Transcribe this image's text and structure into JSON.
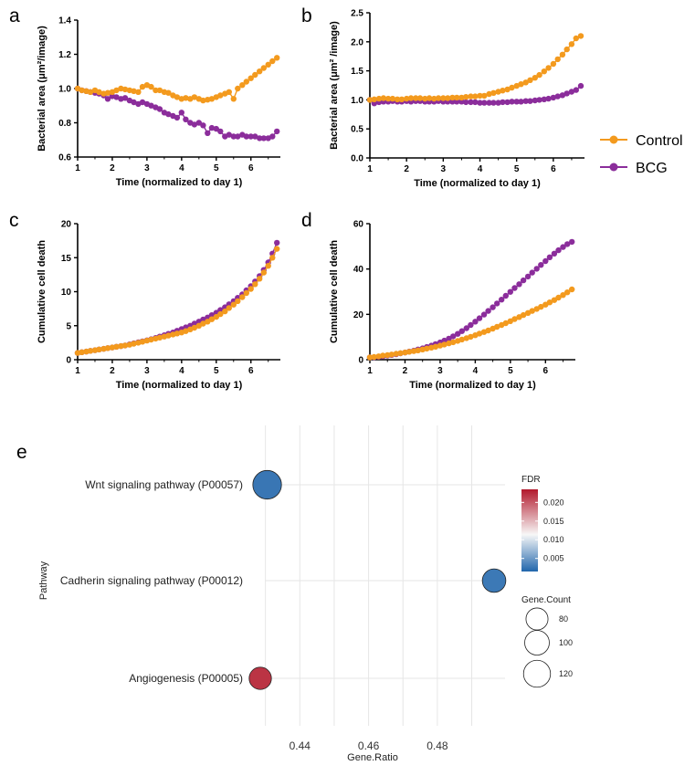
{
  "colors": {
    "control": "#F39A1E",
    "bcg": "#8B2D9B",
    "fdr_low": "#2166AC",
    "fdr_mid": "#F7F7F7",
    "fdr_high": "#B2182B"
  },
  "legend": {
    "items": [
      {
        "label": "Control",
        "color": "#F39A1E"
      },
      {
        "label": "BCG",
        "color": "#8B2D9B"
      }
    ],
    "placement": "right"
  },
  "chart_data": [
    {
      "panel": "a",
      "type": "line",
      "xlabel": "Time (normalized to day 1)",
      "ylabel": "Bacterial area (μm²/image)",
      "xlim": [
        1,
        6.85
      ],
      "ylim": [
        0.6,
        1.4
      ],
      "xticks": [
        "1",
        "2",
        "3",
        "4",
        "5",
        "6"
      ],
      "yticks": [
        "0.6",
        "0.8",
        "1.0",
        "1.2",
        "1.4"
      ],
      "series": [
        {
          "name": "Control",
          "x": [
            1.0,
            1.12,
            1.25,
            1.37,
            1.5,
            1.62,
            1.75,
            1.87,
            2.0,
            2.12,
            2.25,
            2.37,
            2.5,
            2.62,
            2.75,
            2.87,
            3.0,
            3.12,
            3.25,
            3.37,
            3.5,
            3.62,
            3.75,
            3.87,
            4.0,
            4.12,
            4.25,
            4.37,
            4.5,
            4.62,
            4.75,
            4.87,
            5.0,
            5.12,
            5.25,
            5.37,
            5.5,
            5.62,
            5.75,
            5.87,
            6.0,
            6.12,
            6.25,
            6.37,
            6.5,
            6.62,
            6.75
          ],
          "y": [
            1.0,
            0.99,
            0.985,
            0.98,
            0.99,
            0.98,
            0.97,
            0.975,
            0.98,
            0.99,
            1.0,
            0.995,
            0.99,
            0.985,
            0.98,
            1.01,
            1.02,
            1.01,
            0.99,
            0.99,
            0.98,
            0.975,
            0.96,
            0.95,
            0.94,
            0.945,
            0.94,
            0.95,
            0.94,
            0.93,
            0.935,
            0.94,
            0.95,
            0.96,
            0.97,
            0.98,
            0.94,
            1.0,
            1.02,
            1.04,
            1.06,
            1.08,
            1.1,
            1.12,
            1.14,
            1.16,
            1.18
          ]
        },
        {
          "name": "BCG",
          "x": [
            1.0,
            1.12,
            1.25,
            1.37,
            1.5,
            1.62,
            1.75,
            1.87,
            2.0,
            2.12,
            2.25,
            2.37,
            2.5,
            2.62,
            2.75,
            2.87,
            3.0,
            3.12,
            3.25,
            3.37,
            3.5,
            3.62,
            3.75,
            3.87,
            4.0,
            4.12,
            4.25,
            4.37,
            4.5,
            4.62,
            4.75,
            4.87,
            5.0,
            5.12,
            5.25,
            5.37,
            5.5,
            5.62,
            5.75,
            5.87,
            6.0,
            6.12,
            6.25,
            6.37,
            6.5,
            6.62,
            6.75
          ],
          "y": [
            1.0,
            0.99,
            0.985,
            0.98,
            0.975,
            0.97,
            0.96,
            0.94,
            0.955,
            0.95,
            0.94,
            0.945,
            0.93,
            0.92,
            0.91,
            0.92,
            0.91,
            0.9,
            0.89,
            0.88,
            0.86,
            0.85,
            0.84,
            0.83,
            0.86,
            0.82,
            0.8,
            0.79,
            0.8,
            0.785,
            0.74,
            0.77,
            0.765,
            0.75,
            0.72,
            0.73,
            0.72,
            0.72,
            0.73,
            0.72,
            0.72,
            0.72,
            0.71,
            0.71,
            0.71,
            0.72,
            0.75
          ]
        }
      ]
    },
    {
      "panel": "b",
      "type": "line",
      "xlabel": "Time (normalized to day 1)",
      "ylabel": "Bacterial area (μm² /image)",
      "xlim": [
        1,
        6.85
      ],
      "ylim": [
        0,
        2.5
      ],
      "xticks": [
        "1",
        "2",
        "3",
        "4",
        "5",
        "6"
      ],
      "yticks": [
        "0.0",
        "0.5",
        "1.0",
        "1.5",
        "2.0",
        "2.5"
      ],
      "series": [
        {
          "name": "Control",
          "x": [
            1.0,
            1.12,
            1.25,
            1.37,
            1.5,
            1.62,
            1.75,
            1.87,
            2.0,
            2.12,
            2.25,
            2.37,
            2.5,
            2.62,
            2.75,
            2.87,
            3.0,
            3.12,
            3.25,
            3.37,
            3.5,
            3.62,
            3.75,
            3.87,
            4.0,
            4.12,
            4.25,
            4.37,
            4.5,
            4.62,
            4.75,
            4.87,
            5.0,
            5.12,
            5.25,
            5.37,
            5.5,
            5.62,
            5.75,
            5.87,
            6.0,
            6.12,
            6.25,
            6.37,
            6.5,
            6.62,
            6.75
          ],
          "y": [
            1.0,
            1.01,
            1.02,
            1.03,
            1.02,
            1.02,
            1.01,
            1.01,
            1.02,
            1.03,
            1.03,
            1.03,
            1.02,
            1.03,
            1.02,
            1.03,
            1.03,
            1.03,
            1.04,
            1.04,
            1.04,
            1.05,
            1.06,
            1.06,
            1.07,
            1.07,
            1.1,
            1.12,
            1.14,
            1.16,
            1.18,
            1.21,
            1.24,
            1.27,
            1.3,
            1.34,
            1.38,
            1.43,
            1.49,
            1.55,
            1.62,
            1.7,
            1.78,
            1.87,
            1.96,
            2.06,
            2.1
          ]
        },
        {
          "name": "BCG",
          "x": [
            1.0,
            1.12,
            1.25,
            1.37,
            1.5,
            1.62,
            1.75,
            1.87,
            2.0,
            2.12,
            2.25,
            2.37,
            2.5,
            2.62,
            2.75,
            2.87,
            3.0,
            3.12,
            3.25,
            3.37,
            3.5,
            3.62,
            3.75,
            3.87,
            4.0,
            4.12,
            4.25,
            4.37,
            4.5,
            4.62,
            4.75,
            4.87,
            5.0,
            5.12,
            5.25,
            5.37,
            5.5,
            5.62,
            5.75,
            5.87,
            6.0,
            6.12,
            6.25,
            6.37,
            6.5,
            6.62,
            6.75
          ],
          "y": [
            1.0,
            0.94,
            0.96,
            0.97,
            0.97,
            0.98,
            0.97,
            0.97,
            0.98,
            0.97,
            0.98,
            0.98,
            0.97,
            0.97,
            0.97,
            0.98,
            0.97,
            0.97,
            0.97,
            0.97,
            0.97,
            0.96,
            0.96,
            0.96,
            0.95,
            0.95,
            0.95,
            0.95,
            0.95,
            0.96,
            0.96,
            0.97,
            0.97,
            0.97,
            0.98,
            0.98,
            0.99,
            1.0,
            1.01,
            1.02,
            1.04,
            1.06,
            1.08,
            1.11,
            1.14,
            1.17,
            1.24
          ]
        }
      ]
    },
    {
      "panel": "c",
      "type": "line",
      "xlabel": "Time (normalized to day 1)",
      "ylabel": "Cumulative cell death",
      "xlim": [
        1,
        6.85
      ],
      "ylim": [
        0,
        20
      ],
      "xticks": [
        "1",
        "2",
        "3",
        "4",
        "5",
        "6"
      ],
      "yticks": [
        "0",
        "5",
        "10",
        "15",
        "20"
      ],
      "series": [
        {
          "name": "Control",
          "x": [
            1.0,
            1.12,
            1.25,
            1.37,
            1.5,
            1.62,
            1.75,
            1.87,
            2.0,
            2.12,
            2.25,
            2.37,
            2.5,
            2.62,
            2.75,
            2.87,
            3.0,
            3.12,
            3.25,
            3.37,
            3.5,
            3.62,
            3.75,
            3.87,
            4.0,
            4.12,
            4.25,
            4.37,
            4.5,
            4.62,
            4.75,
            4.87,
            5.0,
            5.12,
            5.25,
            5.37,
            5.5,
            5.62,
            5.75,
            5.87,
            6.0,
            6.12,
            6.25,
            6.37,
            6.5,
            6.62,
            6.75
          ],
          "y": [
            1.0,
            1.1,
            1.2,
            1.3,
            1.4,
            1.5,
            1.6,
            1.7,
            1.8,
            1.9,
            2.0,
            2.1,
            2.2,
            2.35,
            2.5,
            2.65,
            2.8,
            2.95,
            3.1,
            3.25,
            3.4,
            3.55,
            3.7,
            3.85,
            4.0,
            4.2,
            4.45,
            4.7,
            5.0,
            5.3,
            5.6,
            5.95,
            6.3,
            6.7,
            7.1,
            7.6,
            8.1,
            8.6,
            9.2,
            9.8,
            10.4,
            11.1,
            11.9,
            12.8,
            13.8,
            15.0,
            16.3
          ]
        },
        {
          "name": "BCG",
          "x": [
            1.0,
            1.12,
            1.25,
            1.37,
            1.5,
            1.62,
            1.75,
            1.87,
            2.0,
            2.12,
            2.25,
            2.37,
            2.5,
            2.62,
            2.75,
            2.87,
            3.0,
            3.12,
            3.25,
            3.37,
            3.5,
            3.62,
            3.75,
            3.87,
            4.0,
            4.12,
            4.25,
            4.37,
            4.5,
            4.62,
            4.75,
            4.87,
            5.0,
            5.12,
            5.25,
            5.37,
            5.5,
            5.62,
            5.75,
            5.87,
            6.0,
            6.12,
            6.25,
            6.37,
            6.5,
            6.62,
            6.75
          ],
          "y": [
            1.0,
            1.1,
            1.2,
            1.3,
            1.4,
            1.5,
            1.6,
            1.7,
            1.8,
            1.9,
            2.0,
            2.1,
            2.25,
            2.4,
            2.55,
            2.7,
            2.85,
            3.0,
            3.2,
            3.4,
            3.6,
            3.8,
            4.0,
            4.25,
            4.5,
            4.75,
            5.0,
            5.3,
            5.6,
            5.9,
            6.2,
            6.55,
            6.9,
            7.3,
            7.7,
            8.15,
            8.6,
            9.1,
            9.6,
            10.2,
            10.8,
            11.5,
            12.3,
            13.2,
            14.3,
            15.6,
            17.2
          ]
        }
      ]
    },
    {
      "panel": "d",
      "type": "line",
      "xlabel": "Time (normalized to day 1)",
      "ylabel": "Cumulative cell death",
      "xlim": [
        1,
        6.85
      ],
      "ylim": [
        0,
        60
      ],
      "xticks": [
        "1",
        "2",
        "3",
        "4",
        "5",
        "6"
      ],
      "yticks": [
        "0",
        "20",
        "40",
        "60"
      ],
      "series": [
        {
          "name": "Control",
          "x": [
            1.0,
            1.12,
            1.25,
            1.37,
            1.5,
            1.62,
            1.75,
            1.87,
            2.0,
            2.12,
            2.25,
            2.37,
            2.5,
            2.62,
            2.75,
            2.87,
            3.0,
            3.12,
            3.25,
            3.37,
            3.5,
            3.62,
            3.75,
            3.87,
            4.0,
            4.12,
            4.25,
            4.37,
            4.5,
            4.62,
            4.75,
            4.87,
            5.0,
            5.12,
            5.25,
            5.37,
            5.5,
            5.62,
            5.75,
            5.87,
            6.0,
            6.12,
            6.25,
            6.37,
            6.5,
            6.62,
            6.75
          ],
          "y": [
            1.0,
            1.2,
            1.5,
            1.8,
            2.0,
            2.3,
            2.6,
            2.9,
            3.2,
            3.5,
            3.8,
            4.1,
            4.5,
            4.9,
            5.3,
            5.7,
            6.2,
            6.7,
            7.2,
            7.7,
            8.3,
            8.9,
            9.5,
            10.1,
            10.8,
            11.5,
            12.2,
            12.9,
            13.7,
            14.5,
            15.3,
            16.1,
            17.0,
            17.9,
            18.8,
            19.7,
            20.6,
            21.5,
            22.4,
            23.3,
            24.3,
            25.3,
            26.3,
            27.4,
            28.5,
            29.7,
            31.0
          ]
        },
        {
          "name": "BCG",
          "x": [
            1.0,
            1.12,
            1.25,
            1.37,
            1.5,
            1.62,
            1.75,
            1.87,
            2.0,
            2.12,
            2.25,
            2.37,
            2.5,
            2.62,
            2.75,
            2.87,
            3.0,
            3.12,
            3.25,
            3.37,
            3.5,
            3.62,
            3.75,
            3.87,
            4.0,
            4.12,
            4.25,
            4.37,
            4.5,
            4.62,
            4.75,
            4.87,
            5.0,
            5.12,
            5.25,
            5.37,
            5.5,
            5.62,
            5.75,
            5.87,
            6.0,
            6.12,
            6.25,
            6.37,
            6.5,
            6.62,
            6.75
          ],
          "y": [
            1.0,
            1.1,
            1.3,
            1.5,
            1.8,
            2.1,
            2.4,
            2.8,
            3.2,
            3.6,
            4.0,
            4.5,
            5.0,
            5.6,
            6.2,
            6.9,
            7.6,
            8.4,
            9.3,
            10.3,
            11.4,
            12.6,
            13.9,
            15.3,
            16.8,
            18.3,
            19.9,
            21.5,
            23.1,
            24.8,
            26.5,
            28.2,
            29.9,
            31.6,
            33.3,
            35.0,
            36.7,
            38.4,
            40.1,
            41.8,
            43.5,
            45.2,
            46.8,
            48.3,
            49.7,
            51.0,
            52.0
          ]
        }
      ]
    },
    {
      "panel": "e",
      "type": "scatter",
      "xlabel": "Gene.Ratio",
      "ylabel": "Pathway",
      "xlim": [
        0.425,
        0.505
      ],
      "xticks": [
        "0.44",
        "0.46",
        "0.48"
      ],
      "categories": [
        "Wnt signaling pathway (P00057)",
        "Cadherin signaling pathway (P00012)",
        "Angiogenesis (P00005)"
      ],
      "points": [
        {
          "pathway": "Wnt signaling pathway (P00057)",
          "gene_ratio": 0.4305,
          "fdr": 0.0035,
          "gene_count": 122
        },
        {
          "pathway": "Cadherin signaling pathway (P00012)",
          "gene_ratio": 0.4965,
          "fdr": 0.0038,
          "gene_count": 82
        },
        {
          "pathway": "Angiogenesis (P00005)",
          "gene_ratio": 0.4285,
          "fdr": 0.022,
          "gene_count": 74
        }
      ],
      "fdr_legend": {
        "title": "FDR",
        "ticks": [
          "0.020",
          "0.015",
          "0.010",
          "0.005"
        ],
        "range": [
          0.0015,
          0.0235
        ]
      },
      "size_legend": {
        "title": "Gene.Count",
        "values": [
          80,
          100,
          120
        ],
        "labels": [
          "80",
          "100",
          "120"
        ]
      }
    }
  ]
}
